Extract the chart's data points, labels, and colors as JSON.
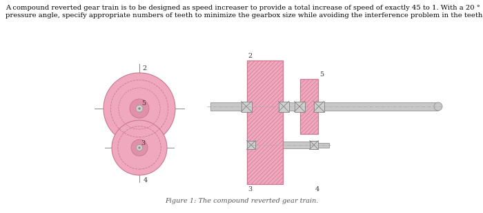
{
  "title_line1": "A compound reverted gear train is to be designed as speed increaser to provide a total increase of speed of exactly 45 to 1. With a 20 °",
  "title_line2": "pressure angle, specify appropriate numbers of teeth to minimize the gearbox size while avoiding the interference problem in the teeth.",
  "caption": "Figure 1: The compound reverted gear train.",
  "gear_pink": "#f0a8be",
  "gear_pink_dark": "#e090a8",
  "gear_pink_light": "#fad0dc",
  "gear_edge": "#c87890",
  "hatch_line": "#d08098",
  "shaft_fill": "#c8c8c8",
  "shaft_edge": "#909090",
  "bearing_fill": "#d0d0d0",
  "bearing_edge": "#888888",
  "centerline_color": "#aaaaaa",
  "crosshair_color": "#888888",
  "label_color": "#333333",
  "bg": "#ffffff"
}
